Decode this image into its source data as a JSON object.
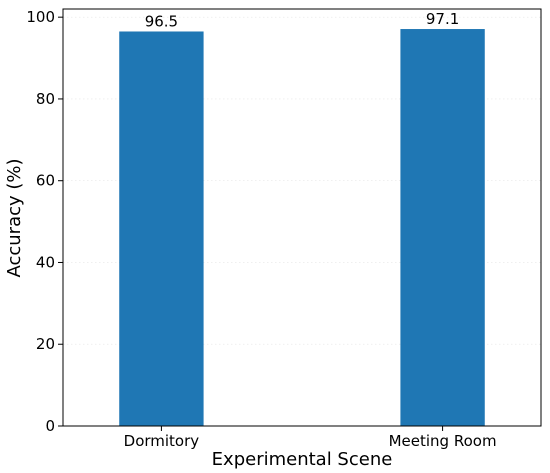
{
  "chart_data": {
    "type": "bar",
    "categories": [
      "Dormitory",
      "Meeting Room"
    ],
    "values": [
      96.5,
      97.1
    ],
    "data_labels": [
      "96.5",
      "97.1"
    ],
    "xlabel": "Experimental Scene",
    "ylabel": "Accuracy (%)",
    "ylim": [
      0,
      102
    ],
    "yticks": [
      0,
      20,
      40,
      60,
      80,
      100
    ],
    "ytick_labels": [
      "0",
      "20",
      "40",
      "60",
      "80",
      "100"
    ],
    "bar_color": "#1f77b4",
    "grid": true,
    "legend": "none"
  }
}
